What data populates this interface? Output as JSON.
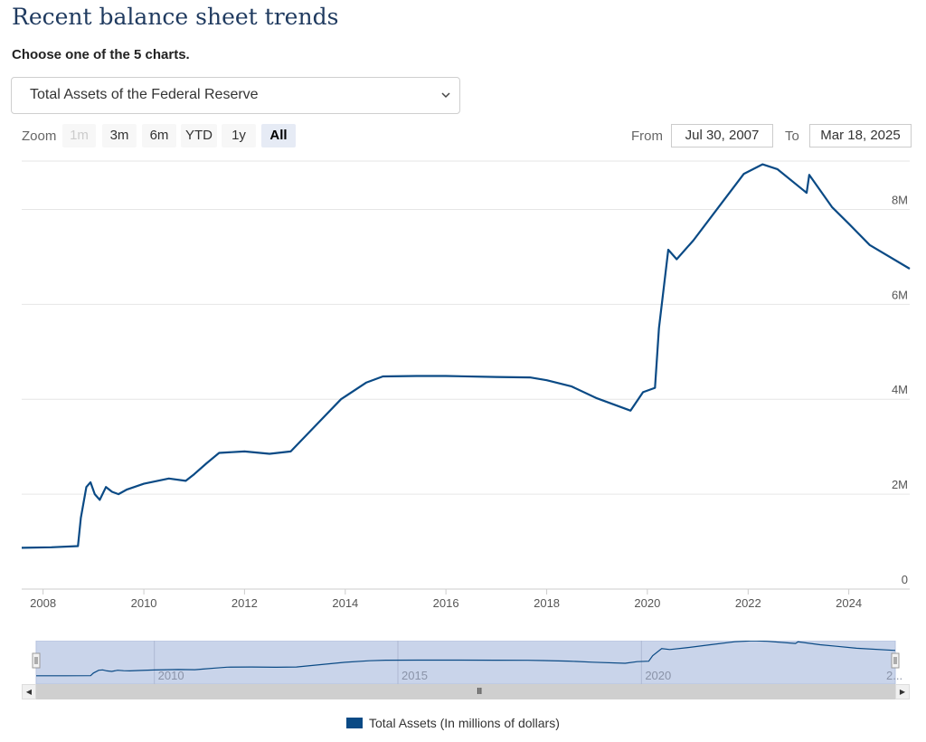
{
  "page": {
    "title": "Recent balance sheet trends",
    "choose_label": "Choose one of the 5 charts.",
    "selected_chart": "Total Assets of the Federal Reserve"
  },
  "zoom": {
    "label": "Zoom",
    "buttons": [
      {
        "label": "1m",
        "state": "disabled"
      },
      {
        "label": "3m",
        "state": "normal"
      },
      {
        "label": "6m",
        "state": "normal"
      },
      {
        "label": "YTD",
        "state": "normal"
      },
      {
        "label": "1y",
        "state": "normal"
      },
      {
        "label": "All",
        "state": "active"
      }
    ]
  },
  "range": {
    "from_label": "From",
    "from_value": "Jul 30, 2007",
    "to_label": "To",
    "to_value": "Mar 18, 2025"
  },
  "colors": {
    "line": "#0a4a85",
    "navigator_fill": "#c9d4ea",
    "grid": "#e6e6e6"
  },
  "chart_data": {
    "type": "line",
    "title": "",
    "xlabel": "",
    "ylabel": "",
    "xlim": [
      "2007-07-30",
      "2025-03-18"
    ],
    "ylim": [
      0,
      9000000
    ],
    "grid": true,
    "legend_position": "bottom-center",
    "x_ticks": [
      "2008",
      "2010",
      "2012",
      "2014",
      "2016",
      "2018",
      "2020",
      "2022",
      "2024"
    ],
    "y_ticks": [
      "0",
      "2M",
      "4M",
      "6M",
      "8M"
    ],
    "series": [
      {
        "name": "Total Assets (In millions of dollars)",
        "points": [
          [
            "2007-07-30",
            870000
          ],
          [
            "2008-03-01",
            880000
          ],
          [
            "2008-09-10",
            905000
          ],
          [
            "2008-10-01",
            1500000
          ],
          [
            "2008-11-10",
            2150000
          ],
          [
            "2008-12-10",
            2250000
          ],
          [
            "2009-01-10",
            2000000
          ],
          [
            "2009-02-15",
            1880000
          ],
          [
            "2009-04-01",
            2150000
          ],
          [
            "2009-05-15",
            2050000
          ],
          [
            "2009-07-01",
            2000000
          ],
          [
            "2009-09-01",
            2100000
          ],
          [
            "2010-01-01",
            2220000
          ],
          [
            "2010-07-01",
            2330000
          ],
          [
            "2010-11-01",
            2280000
          ],
          [
            "2011-01-01",
            2420000
          ],
          [
            "2011-04-01",
            2650000
          ],
          [
            "2011-07-01",
            2870000
          ],
          [
            "2012-01-01",
            2900000
          ],
          [
            "2012-07-01",
            2850000
          ],
          [
            "2012-12-01",
            2900000
          ],
          [
            "2013-06-01",
            3450000
          ],
          [
            "2013-12-01",
            4000000
          ],
          [
            "2014-06-01",
            4350000
          ],
          [
            "2014-10-01",
            4480000
          ],
          [
            "2015-06-01",
            4490000
          ],
          [
            "2016-01-01",
            4490000
          ],
          [
            "2017-01-01",
            4470000
          ],
          [
            "2017-09-01",
            4460000
          ],
          [
            "2018-01-01",
            4400000
          ],
          [
            "2018-07-01",
            4270000
          ],
          [
            "2019-01-01",
            4020000
          ],
          [
            "2019-09-01",
            3760000
          ],
          [
            "2019-12-01",
            4150000
          ],
          [
            "2020-02-25",
            4240000
          ],
          [
            "2020-03-25",
            5500000
          ],
          [
            "2020-06-01",
            7150000
          ],
          [
            "2020-08-01",
            6950000
          ],
          [
            "2020-12-01",
            7350000
          ],
          [
            "2021-06-01",
            8050000
          ],
          [
            "2021-12-01",
            8750000
          ],
          [
            "2022-04-15",
            8950000
          ],
          [
            "2022-08-01",
            8850000
          ],
          [
            "2023-03-01",
            8350000
          ],
          [
            "2023-03-20",
            8730000
          ],
          [
            "2023-09-01",
            8050000
          ],
          [
            "2024-01-01",
            7700000
          ],
          [
            "2024-06-01",
            7250000
          ],
          [
            "2025-03-18",
            6750000
          ]
        ]
      }
    ]
  },
  "navigator": {
    "labels": [
      "2010",
      "2015",
      "2020",
      "2..."
    ]
  },
  "legend": {
    "label": "Total Assets (In millions of dollars)"
  }
}
